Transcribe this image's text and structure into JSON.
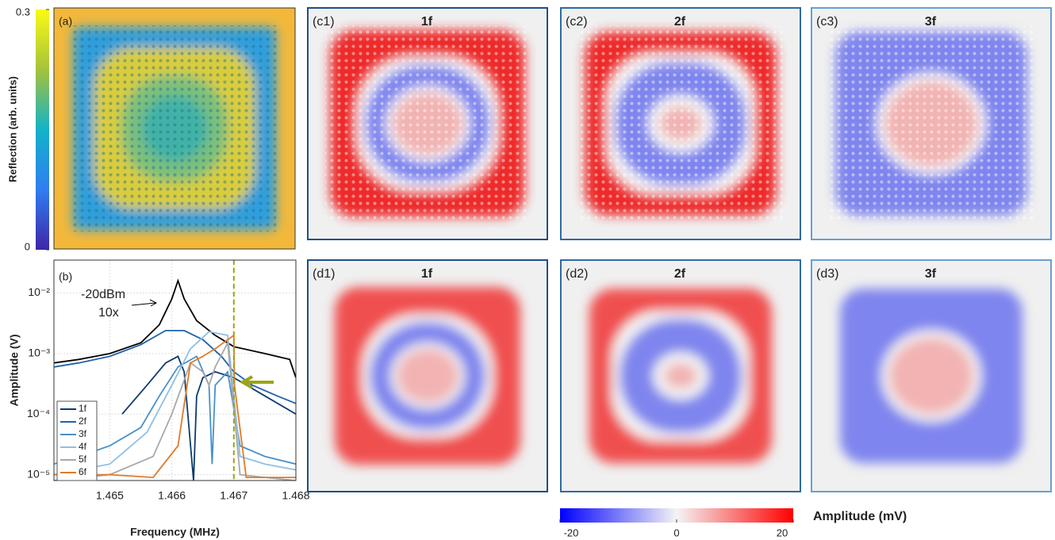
{
  "chart_data": [
    {
      "type": "image",
      "panel": "(a)",
      "colorbar": {
        "label": "Reflection (arb. units)",
        "lim": [
          0,
          0.3
        ],
        "ticks": [
          0,
          0.3
        ]
      }
    },
    {
      "type": "line",
      "panel": "(b)",
      "xlabel": "Frequency (MHz)",
      "ylabel": "Amplitude (V)",
      "log_y": true,
      "grid": true,
      "legend": "lower left",
      "xlim": [
        1.4641,
        1.468
      ],
      "xticks": [
        1.465,
        1.466,
        1.467,
        1.468
      ],
      "ylim": [
        8e-06,
        0.035
      ],
      "yticks": [
        {
          "value": 0.01,
          "label": "10⁻²"
        },
        {
          "value": 0.001,
          "label": "10⁻³"
        },
        {
          "value": 0.0001,
          "label": "10⁻⁴"
        },
        {
          "value": 1e-05,
          "label": "10⁻⁵"
        }
      ],
      "annotations": [
        "-20dBm",
        "10x"
      ],
      "vline": 1.467,
      "vline_color": "#9aa518",
      "series": [
        {
          "color": "#000000",
          "x": [
            1.4641,
            1.4645,
            1.465,
            1.4655,
            1.4658,
            1.466,
            1.4661,
            1.4662,
            1.4664,
            1.4667,
            1.467,
            1.4675,
            1.4679,
            1.468
          ],
          "values": [
            0.0007,
            0.0008,
            0.001,
            0.0015,
            0.003,
            0.008,
            0.016,
            0.008,
            0.0035,
            0.002,
            0.0013,
            0.001,
            0.0008,
            0.0004
          ]
        },
        {
          "name": "1f",
          "color": "#0d3b6e",
          "x": [
            1.4652,
            1.4656,
            1.4659,
            1.4661,
            1.4662,
            1.46635,
            1.4664,
            1.4665,
            1.4667,
            1.467,
            1.4675,
            1.468
          ],
          "values": [
            0.0001,
            0.0003,
            0.0007,
            0.0009,
            0.0005,
            8e-06,
            0.0002,
            0.0004,
            0.0005,
            0.0004,
            0.0002,
            0.0001
          ]
        },
        {
          "name": "2f",
          "color": "#1f62a8",
          "x": [
            1.4641,
            1.4645,
            1.465,
            1.4655,
            1.4659,
            1.4662,
            1.4665,
            1.4668,
            1.467,
            1.4673,
            1.4677,
            1.468
          ],
          "values": [
            0.0006,
            0.0007,
            0.0009,
            0.0014,
            0.0024,
            0.0024,
            0.0017,
            0.0009,
            0.0005,
            0.0003,
            0.0002,
            0.00015
          ]
        },
        {
          "name": "3f",
          "color": "#4a90c8",
          "x": [
            1.4641,
            1.4645,
            1.465,
            1.4655,
            1.4658,
            1.4661,
            1.4664,
            1.4666,
            1.46665,
            1.4667,
            1.4669,
            1.4671,
            1.4675,
            1.468
          ],
          "values": [
            1.5e-05,
            2e-05,
            3e-05,
            6e-05,
            0.0002,
            0.0006,
            0.0009,
            0.0003,
            1.5e-05,
            0.0003,
            0.0005,
            3e-05,
            2e-05,
            1.5e-05
          ]
        },
        {
          "name": "4f",
          "color": "#8fbfe6",
          "x": [
            1.4641,
            1.465,
            1.4656,
            1.466,
            1.4663,
            1.4666,
            1.4669,
            1.4671,
            1.4675,
            1.468
          ],
          "values": [
            1e-05,
            1.5e-05,
            5e-05,
            0.0003,
            0.0012,
            0.0023,
            0.002,
            2e-05,
            1.5e-05,
            1.2e-05
          ]
        },
        {
          "name": "5f",
          "color": "#a8a8a8",
          "x": [
            1.4641,
            1.465,
            1.4657,
            1.466,
            1.4663,
            1.4665,
            1.4666,
            1.4667,
            1.4669,
            1.4671,
            1.4675,
            1.468
          ],
          "values": [
            8e-06,
            1e-05,
            2e-05,
            0.0001,
            0.0007,
            0.0005,
            0.0003,
            0.0006,
            0.0015,
            1e-05,
            9e-06,
            8e-06
          ]
        },
        {
          "name": "6f",
          "color": "#e07a28",
          "x": [
            1.4641,
            1.465,
            1.4657,
            1.4661,
            1.4663,
            1.4665,
            1.4667,
            1.467,
            1.46701,
            1.4672,
            1.4675,
            1.468
          ],
          "values": [
            1e-05,
            1e-05,
            9e-06,
            3e-05,
            0.0007,
            0.0009,
            0.0012,
            0.002,
            0.0003,
            9e-06,
            9e-06,
            9e-06
          ]
        }
      ]
    },
    {
      "type": "maps",
      "panels": [
        {
          "label": "(c1)",
          "title": "1f"
        },
        {
          "label": "(c2)",
          "title": "2f"
        },
        {
          "label": "(c3)",
          "title": "3f"
        },
        {
          "label": "(d1)",
          "title": "1f"
        },
        {
          "label": "(d2)",
          "title": "2f"
        },
        {
          "label": "(d3)",
          "title": "3f"
        }
      ],
      "colorbar": {
        "label": "Amplitude (mV)",
        "lim": [
          -20,
          20
        ],
        "ticks": [
          -20,
          0,
          20
        ]
      }
    }
  ]
}
